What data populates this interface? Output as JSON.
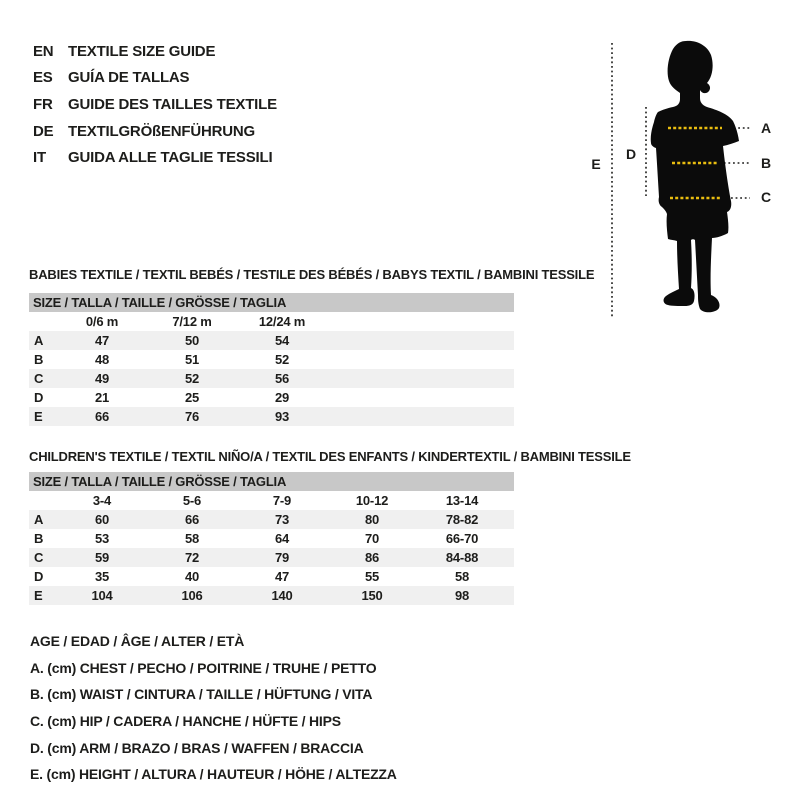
{
  "languages": [
    {
      "code": "EN",
      "title": "TEXTILE SIZE GUIDE"
    },
    {
      "code": "ES",
      "title": "GUÍA DE TALLAS"
    },
    {
      "code": "FR",
      "title": "GUIDE DES TAILLES TEXTILE"
    },
    {
      "code": "DE",
      "title": "TEXTILGRÖßENFÜHRUNG"
    },
    {
      "code": "IT",
      "title": "GUIDA ALLE TAGLIE TESSILI"
    }
  ],
  "figure": {
    "silhouette": "child-silhouette",
    "markers": {
      "a": "A",
      "b": "B",
      "c": "C",
      "d": "D",
      "e": "E"
    }
  },
  "babies": {
    "heading": "BABIES TEXTILE / TEXTIL BEBÉS / TESTILE DES BÉBÉS / BABYS TEXTIL / BAMBINI TESSILE",
    "table": {
      "size_header": "SIZE / TALLA / TAILLE / GRÖSSE / TAGLIA",
      "columns": [
        "0/6 m",
        "7/12 m",
        "12/24 m"
      ],
      "rows": [
        {
          "label": "A",
          "values": [
            "47",
            "50",
            "54"
          ]
        },
        {
          "label": "B",
          "values": [
            "48",
            "51",
            "52"
          ]
        },
        {
          "label": "C",
          "values": [
            "49",
            "52",
            "56"
          ]
        },
        {
          "label": "D",
          "values": [
            "21",
            "25",
            "29"
          ]
        },
        {
          "label": "E",
          "values": [
            "66",
            "76",
            "93"
          ]
        }
      ]
    }
  },
  "children": {
    "heading": "CHILDREN'S TEXTILE / TEXTIL NIÑO/A / TEXTIL DES ENFANTS / KINDERTEXTIL / BAMBINI TESSILE",
    "table": {
      "size_header": "SIZE / TALLA / TAILLE / GRÖSSE / TAGLIA",
      "columns": [
        "3-4",
        "5-6",
        "7-9",
        "10-12",
        "13-14"
      ],
      "rows": [
        {
          "label": "A",
          "values": [
            "60",
            "66",
            "73",
            "80",
            "78-82"
          ]
        },
        {
          "label": "B",
          "values": [
            "53",
            "58",
            "64",
            "70",
            "66-70"
          ]
        },
        {
          "label": "C",
          "values": [
            "59",
            "72",
            "79",
            "86",
            "84-88"
          ]
        },
        {
          "label": "D",
          "values": [
            "35",
            "40",
            "47",
            "55",
            "58"
          ]
        },
        {
          "label": "E",
          "values": [
            "104",
            "106",
            "140",
            "150",
            "98"
          ]
        }
      ]
    }
  },
  "legend": {
    "age_line": "AGE / EDAD / ÂGE / ALTER / ETÀ",
    "items": [
      "A. (cm) CHEST / PECHO / POITRINE / TRUHE / PETTO",
      "B. (cm) WAIST / CINTURA / TAILLE / HÜFTUNG / VITA",
      "C. (cm) HIP / CADERA / HANCHE / HÜFTE / HIPS",
      "D. (cm) ARM / BRAZO / BRAS / WAFFEN / BRACCIA",
      "E. (cm) HEIGHT / ALTURA / HAUTEUR / HÖHE / ALTEZZA"
    ]
  },
  "colors": {
    "accent_yellow": "#e9bd10",
    "table_header_gray": "#c8c8c8",
    "row_stripe_gray": "#f0f0f0",
    "text": "#1d1d1b"
  }
}
